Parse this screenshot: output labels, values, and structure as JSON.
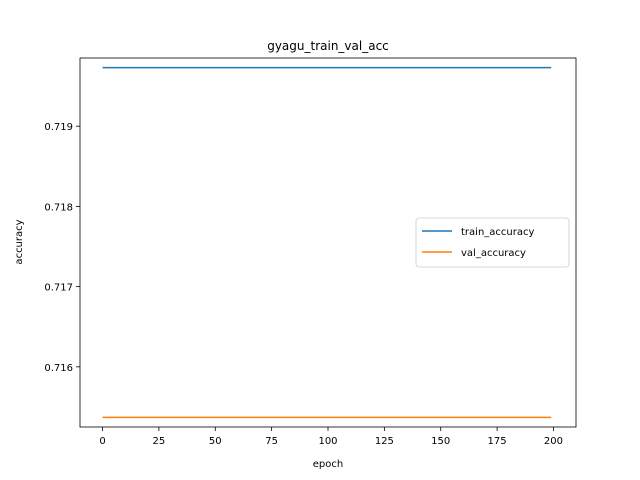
{
  "chart_data": {
    "type": "line",
    "title": "gyagu_train_val_acc",
    "xlabel": "epoch",
    "ylabel": "accuracy",
    "xlim": [
      -10,
      210
    ],
    "ylim": [
      0.71525,
      0.71985
    ],
    "xticks": [
      0,
      25,
      50,
      75,
      100,
      125,
      150,
      175,
      200
    ],
    "xtick_labels": [
      "0",
      "25",
      "50",
      "75",
      "100",
      "125",
      "150",
      "175",
      "200"
    ],
    "yticks": [
      0.716,
      0.717,
      0.718,
      0.719
    ],
    "ytick_labels": [
      "0.716",
      "0.717",
      "0.718",
      "0.719"
    ],
    "grid": false,
    "legend_position": "center-right",
    "series": [
      {
        "name": "train_accuracy",
        "color": "#1f77b4",
        "x": [
          0,
          199
        ],
        "values": [
          0.71973,
          0.71973
        ]
      },
      {
        "name": "val_accuracy",
        "color": "#ff7f0e",
        "x": [
          0,
          199
        ],
        "values": [
          0.71537,
          0.71537
        ]
      }
    ]
  }
}
